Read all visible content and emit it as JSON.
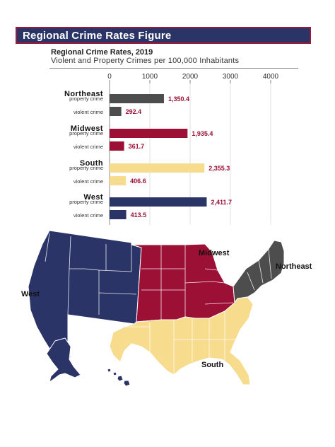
{
  "banner": {
    "title": "Regional Crime Rates Figure"
  },
  "chart_data": {
    "type": "bar",
    "orientation": "horizontal",
    "title": "Regional Crime Rates, 2019",
    "subtitle": "Violent and Property Crimes per 100,000 Inhabitants",
    "xlim": [
      0,
      4000
    ],
    "xticks": [
      "0",
      "1000",
      "2000",
      "3000",
      "4000"
    ],
    "grid": true,
    "groups": [
      {
        "region": "Northeast",
        "color": "#4d4d4d",
        "bars": [
          {
            "label": "property crime",
            "value": 1350.4,
            "value_text": "1,350.4"
          },
          {
            "label": "violent crime",
            "value": 292.4,
            "value_text": "292.4"
          }
        ]
      },
      {
        "region": "Midwest",
        "color": "#9b1034",
        "bars": [
          {
            "label": "property crime",
            "value": 1935.4,
            "value_text": "1,935.4"
          },
          {
            "label": "violent crime",
            "value": 361.7,
            "value_text": "361.7"
          }
        ]
      },
      {
        "region": "South",
        "color": "#f7dc8e",
        "bars": [
          {
            "label": "property crime",
            "value": 2355.3,
            "value_text": "2,355.3"
          },
          {
            "label": "violent crime",
            "value": 406.6,
            "value_text": "406.6"
          }
        ]
      },
      {
        "region": "West",
        "color": "#2b3467",
        "bars": [
          {
            "label": "property crime",
            "value": 2411.7,
            "value_text": "2,411.7"
          },
          {
            "label": "violent crime",
            "value": 413.5,
            "value_text": "413.5"
          }
        ]
      }
    ],
    "value_label_color": "#9b1034"
  },
  "map": {
    "labels": {
      "west": "West",
      "midwest": "Midwest",
      "northeast": "Northeast",
      "south": "South"
    },
    "colors": {
      "west": "#2b3467",
      "midwest": "#9b1034",
      "northeast": "#4d4d4d",
      "south": "#f7dc8e"
    }
  }
}
